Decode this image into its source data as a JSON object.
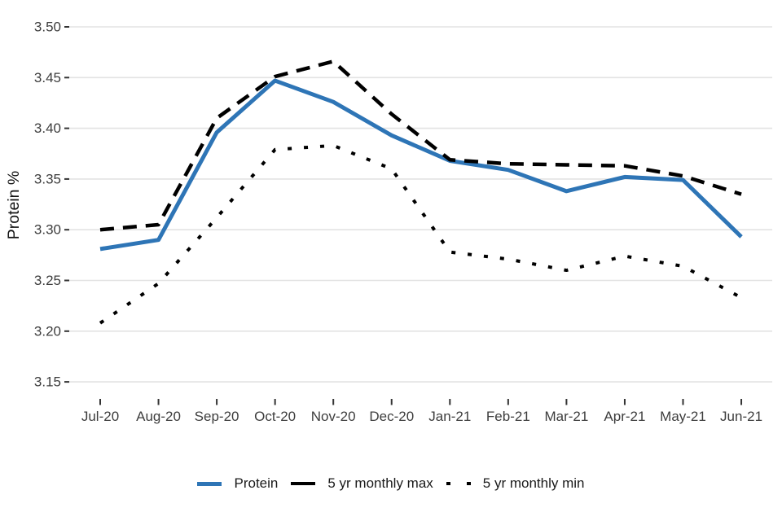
{
  "chart_data": {
    "type": "line",
    "title": "",
    "xlabel": "",
    "ylabel": "Protein %",
    "categories": [
      "Jul-20",
      "Aug-20",
      "Sep-20",
      "Oct-20",
      "Nov-20",
      "Dec-20",
      "Jan-21",
      "Feb-21",
      "Mar-21",
      "Apr-21",
      "May-21",
      "Jun-21"
    ],
    "series": [
      {
        "name": "Protein",
        "style": "solid",
        "color": "#2E75B6",
        "values": [
          3.281,
          3.29,
          3.396,
          3.447,
          3.426,
          3.393,
          3.368,
          3.359,
          3.338,
          3.352,
          3.349,
          3.293
        ]
      },
      {
        "name": "5 yr monthly max",
        "style": "dashed",
        "color": "#000000",
        "values": [
          3.3,
          3.305,
          3.41,
          3.451,
          3.466,
          3.414,
          3.369,
          3.365,
          3.364,
          3.363,
          3.353,
          3.335
        ]
      },
      {
        "name": "5 yr monthly min",
        "style": "dotted",
        "color": "#000000",
        "values": [
          3.208,
          3.247,
          3.312,
          3.379,
          3.383,
          3.36,
          3.278,
          3.271,
          3.26,
          3.274,
          3.264,
          3.233
        ]
      }
    ],
    "ylim": [
      3.15,
      3.5
    ],
    "yticks": [
      3.15,
      3.2,
      3.25,
      3.3,
      3.35,
      3.4,
      3.45,
      3.5
    ],
    "grid": "horizontal-major",
    "legend_position": "bottom"
  },
  "style": {
    "background": "#ffffff",
    "grid_color": "#e3e3e3",
    "tick_color": "#333333",
    "axis_text_color": "#3d3d3d",
    "axis_title_color": "#111111",
    "legend_text_color": "#1a1a1a"
  }
}
